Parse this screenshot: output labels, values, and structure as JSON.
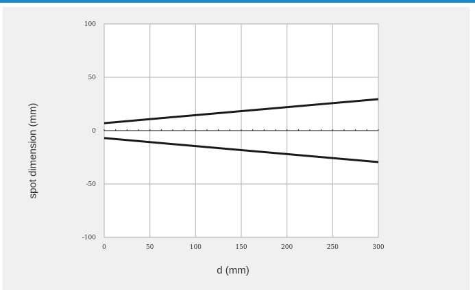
{
  "chart_data": {
    "type": "line",
    "title": "",
    "xlabel": "d (mm)",
    "ylabel": "spot dimension (mm)",
    "xlim": [
      0,
      300
    ],
    "ylim": [
      -100,
      100
    ],
    "x_ticks": [
      0,
      50,
      100,
      150,
      200,
      250,
      300
    ],
    "y_ticks": [
      -100,
      -50,
      0,
      50,
      100
    ],
    "grid": true,
    "legend": "none",
    "line_color": "#1a1a1a",
    "grid_color": "#bdbdbd",
    "series": [
      {
        "x": [
          0,
          300
        ],
        "y": [
          7,
          29.5
        ]
      },
      {
        "x": [
          0,
          300
        ],
        "y": [
          -7,
          -29.5
        ]
      },
      {
        "x": [
          0,
          300
        ],
        "y": [
          0,
          0
        ],
        "style": "dotted"
      }
    ]
  }
}
